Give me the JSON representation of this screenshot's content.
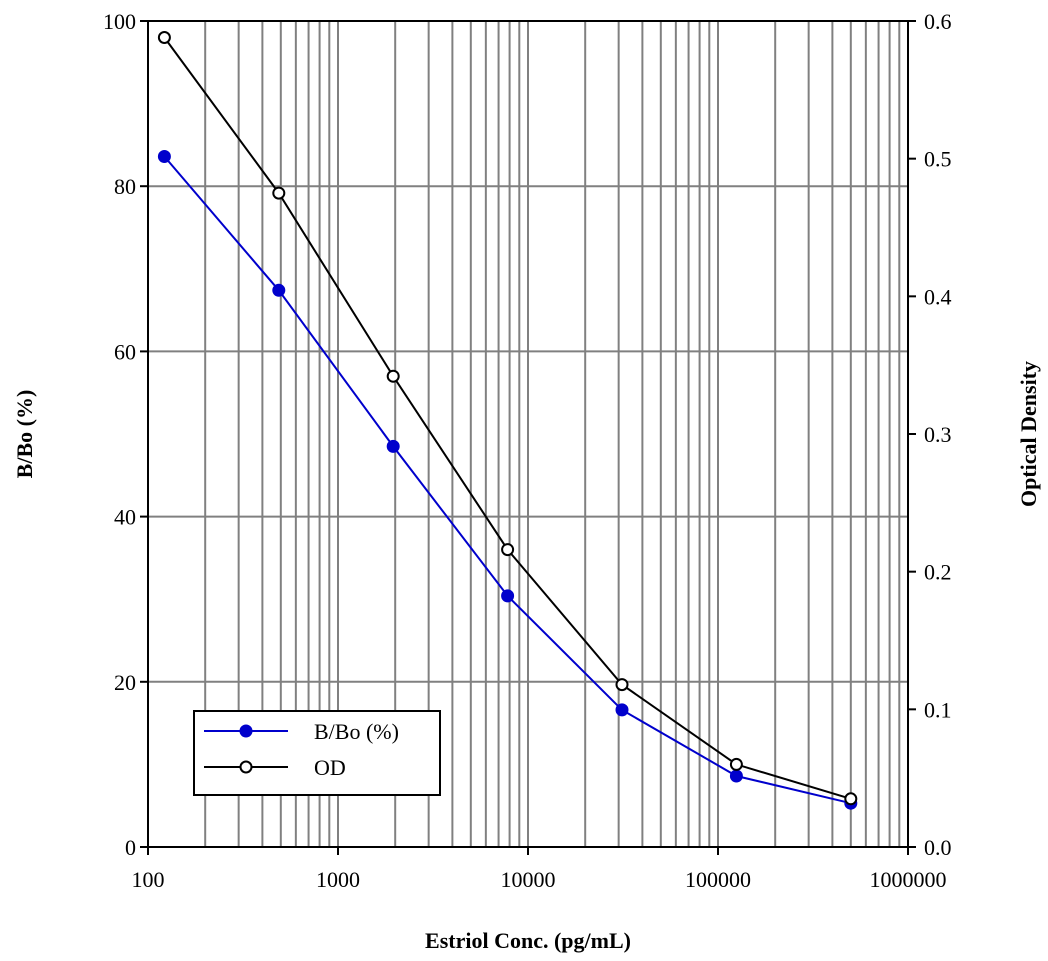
{
  "chart_data": {
    "type": "line",
    "title": "",
    "xlabel": "Estriol Conc. (pg/mL)",
    "ylabel": "B/Bo (%)",
    "y2label": "Optical Density",
    "xscale": "log",
    "xlim": [
      100,
      1000000
    ],
    "ylim": [
      0,
      100
    ],
    "y2lim": [
      0,
      0.6
    ],
    "x_ticks": [
      100,
      1000,
      10000,
      100000,
      1000000
    ],
    "x_tick_labels": [
      "100",
      "1000",
      "10000",
      "100000",
      "1000000"
    ],
    "y_ticks": [
      0,
      20,
      40,
      60,
      80,
      100
    ],
    "y_tick_labels": [
      "0",
      "20",
      "40",
      "60",
      "80",
      "100"
    ],
    "y2_ticks": [
      0,
      0.1,
      0.2,
      0.3,
      0.4,
      0.5,
      0.6
    ],
    "y2_tick_labels": [
      "0.0",
      "0.1",
      "0.2",
      "0.3",
      "0.4",
      "0.5",
      "0.6"
    ],
    "grid": true,
    "legend_position": "bottom-left",
    "x": [
      122,
      488,
      1953,
      7813,
      31250,
      125000,
      500000
    ],
    "series": [
      {
        "name": "B/Bo (%)",
        "axis": "left",
        "color": "#0000cc",
        "marker": "filled-circle",
        "values": [
          83.6,
          67.4,
          48.5,
          30.4,
          16.6,
          8.6,
          5.3
        ]
      },
      {
        "name": "OD",
        "axis": "right",
        "color": "#000000",
        "marker": "open-circle",
        "values": [
          0.588,
          0.475,
          0.342,
          0.216,
          0.118,
          0.06,
          0.035
        ]
      }
    ]
  }
}
